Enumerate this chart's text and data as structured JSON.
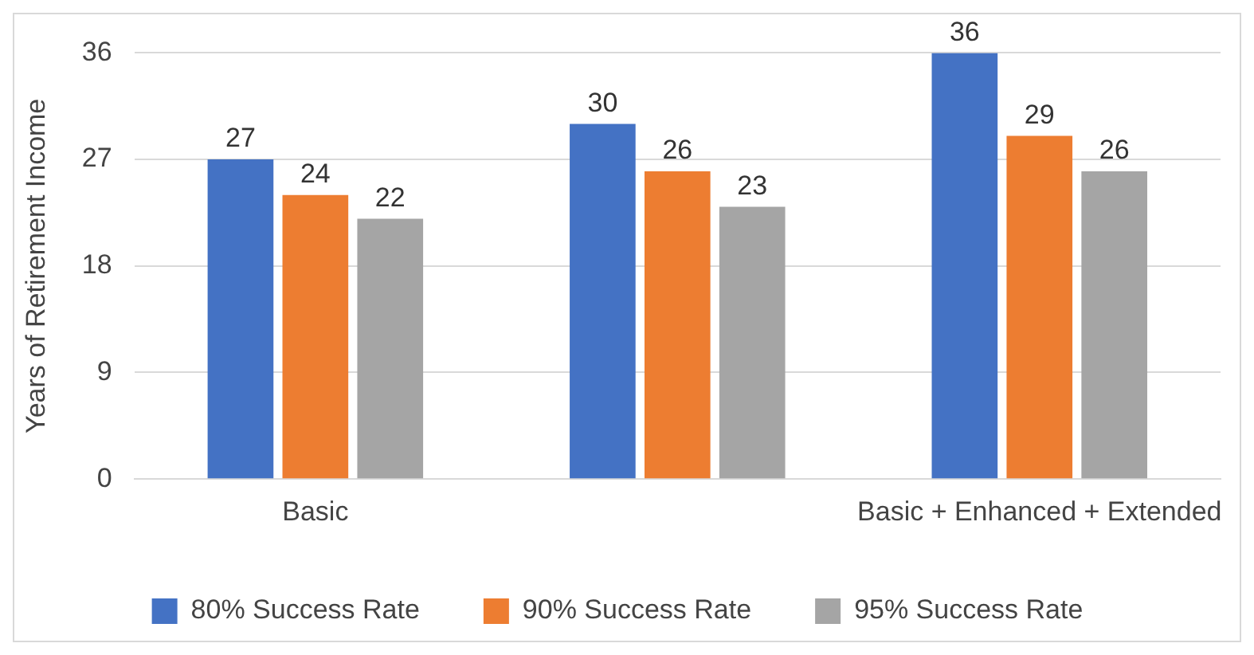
{
  "chart_data": {
    "type": "bar",
    "ylabel": "Years of Retirement Income",
    "categories": [
      "Basic",
      null,
      "Basic + Enhanced + Extended"
    ],
    "series": [
      {
        "name": "80% Success Rate",
        "color": "#4472c4",
        "values": [
          27,
          30,
          36
        ]
      },
      {
        "name": "90% Success Rate",
        "color": "#ed7d31",
        "values": [
          24,
          26,
          29
        ]
      },
      {
        "name": "95% Success Rate",
        "color": "#a5a5a5",
        "values": [
          22,
          23,
          26
        ]
      }
    ],
    "ylim": [
      0,
      36
    ],
    "yticks": [
      0,
      9,
      18,
      27,
      36
    ],
    "grid": "y",
    "legend": "bottom",
    "data_labels": true
  }
}
